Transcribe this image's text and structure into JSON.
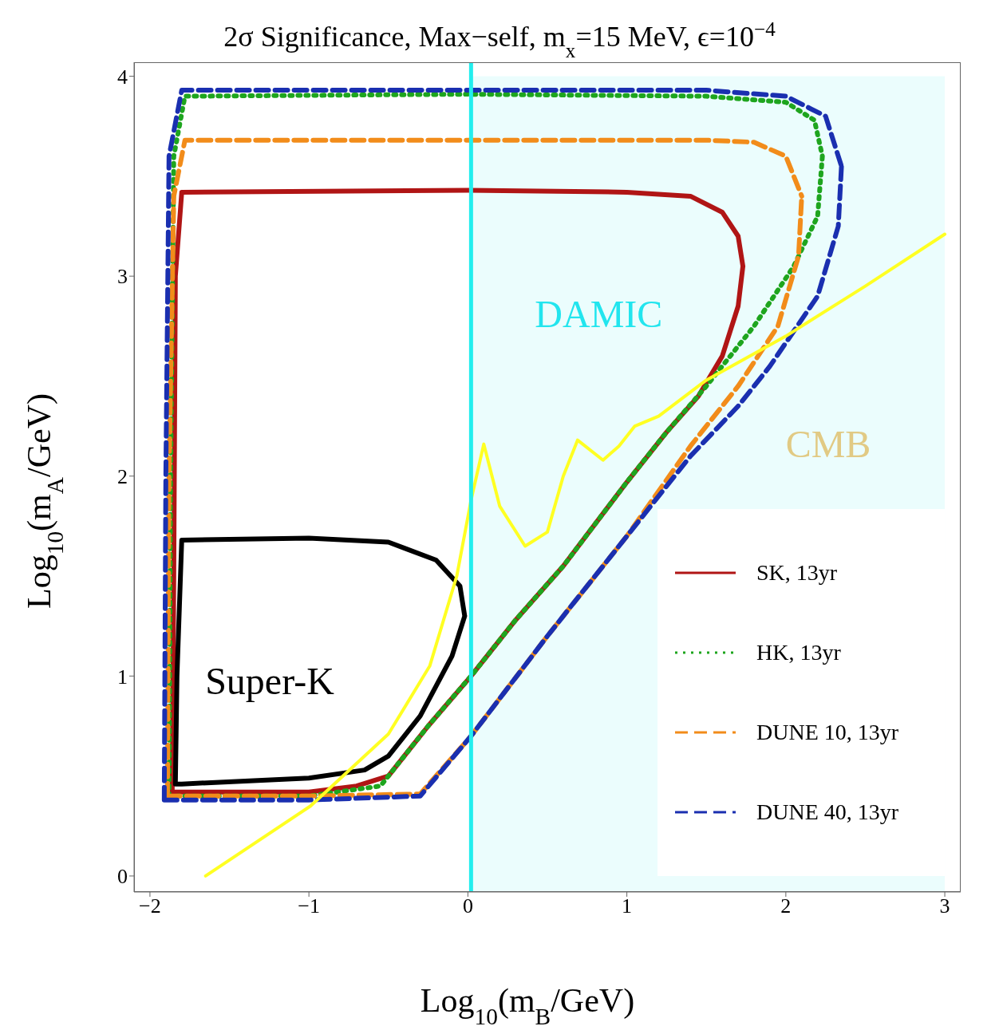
{
  "chart_data": {
    "type": "line",
    "title": "2σ Significance, Max−self, m$_{x}$=15 MeV, ϵ=10$^{−4}$",
    "xlabel": "Log$_{10}$(m$_{B}$/GeV)",
    "ylabel": "Log$_{10}$(m$_{A}$/GeV)",
    "xlim": [
      -2.1,
      3.1
    ],
    "ylim": [
      -0.08,
      4.07
    ],
    "xticks": [
      -2,
      -1,
      0,
      1,
      2,
      3
    ],
    "yticks": [
      0,
      1,
      2,
      3,
      4
    ],
    "legend": "bottom right",
    "marker": "none",
    "series": [
      {
        "name": "SK, 13yr",
        "color": "#b01515",
        "line_style": "solid",
        "x": [
          -1.86,
          -1.85,
          -1.84,
          -1.8,
          0,
          1.0,
          1.4,
          1.6,
          1.7,
          1.73,
          null,
          -1.86,
          -1.0,
          -0.7,
          -0.5,
          -0.25,
          0.02,
          0.3,
          0.6,
          1.0,
          1.25,
          1.45,
          1.6,
          1.7,
          1.73
        ],
        "values": [
          0.42,
          1.5,
          3.0,
          3.42,
          3.43,
          3.42,
          3.4,
          3.32,
          3.2,
          3.05,
          null,
          0.42,
          0.42,
          0.45,
          0.5,
          0.75,
          1.0,
          1.28,
          1.55,
          1.97,
          2.22,
          2.4,
          2.6,
          2.85,
          3.05
        ]
      },
      {
        "name": "HK, 13yr",
        "color": "#1ea51e",
        "line_style": "dotted",
        "x": [
          -1.88,
          -1.87,
          -1.85,
          -1.78,
          0,
          1.5,
          2.0,
          2.18,
          2.23,
          null,
          -1.88,
          -1.0,
          -0.55,
          -0.25,
          0.02,
          0.3,
          0.6,
          1.0,
          1.25,
          1.5,
          1.8,
          2.05,
          2.2,
          2.23
        ],
        "values": [
          0.4,
          2.0,
          3.6,
          3.9,
          3.91,
          3.9,
          3.87,
          3.78,
          3.6,
          null,
          0.4,
          0.4,
          0.45,
          0.75,
          1.0,
          1.28,
          1.55,
          1.97,
          2.22,
          2.45,
          2.75,
          3.05,
          3.3,
          3.6
        ]
      },
      {
        "name": "DUNE 10, 13yr",
        "color": "#f28c1a",
        "line_style": "dashed",
        "x": [
          -1.89,
          -1.88,
          -1.85,
          -1.78,
          0,
          1.5,
          1.8,
          2.0,
          2.1,
          null,
          -1.89,
          -1.0,
          -0.3,
          0.02,
          0.5,
          1.0,
          1.4,
          1.7,
          1.95,
          2.08,
          2.1
        ],
        "values": [
          0.4,
          2.0,
          3.4,
          3.68,
          3.68,
          3.68,
          3.67,
          3.6,
          3.4,
          null,
          0.4,
          0.4,
          0.41,
          0.7,
          1.2,
          1.7,
          2.15,
          2.45,
          2.75,
          3.1,
          3.4
        ]
      },
      {
        "name": "DUNE 40, 13yr",
        "color": "#1a2fb0",
        "line_style": "dashed",
        "x": [
          -1.91,
          -1.9,
          -1.88,
          -1.8,
          0,
          1.5,
          2.0,
          2.25,
          2.35,
          null,
          -1.91,
          -1.0,
          -0.3,
          0.02,
          0.5,
          1.0,
          1.4,
          1.7,
          1.9,
          2.2,
          2.33,
          2.35
        ],
        "values": [
          0.38,
          2.0,
          3.6,
          3.93,
          3.93,
          3.93,
          3.9,
          3.8,
          3.55,
          null,
          0.38,
          0.38,
          0.4,
          0.7,
          1.2,
          1.7,
          2.1,
          2.35,
          2.55,
          2.9,
          3.25,
          3.55
        ]
      },
      {
        "color": "#000000",
        "line_style": "solid",
        "x": [
          -1.84,
          -1.83,
          -1.8,
          -1.0,
          -0.5,
          -0.2,
          -0.05,
          -0.02,
          null,
          -1.84,
          -1.8,
          -1.0,
          -0.65,
          -0.5,
          -0.3,
          -0.1,
          -0.02
        ],
        "values": [
          0.46,
          1.0,
          1.68,
          1.69,
          1.67,
          1.58,
          1.45,
          1.3,
          null,
          0.46,
          0.46,
          0.49,
          0.53,
          0.6,
          0.8,
          1.1,
          1.3
        ]
      },
      {
        "color": "#ffff22",
        "line_style": "solid",
        "x": [
          -1.65,
          -0.99,
          -0.5,
          -0.24,
          -0.07,
          0.02,
          0.1,
          0.2,
          0.36,
          0.5,
          0.6,
          0.69,
          0.85,
          0.95,
          1.05,
          1.2,
          1.5,
          2.0,
          2.5,
          3.0
        ],
        "values": [
          0,
          0.35,
          0.71,
          1.05,
          1.5,
          1.88,
          2.16,
          1.85,
          1.65,
          1.72,
          2.0,
          2.18,
          2.08,
          2.15,
          2.25,
          2.3,
          2.48,
          2.7,
          2.95,
          3.21
        ]
      }
    ],
    "ref_lines": [
      {
        "axis": "x",
        "value": 0.02,
        "color": "#22eeee"
      }
    ],
    "bands": [
      {
        "axis": "x",
        "from": 0.02,
        "to": 3.0,
        "label": "DAMIC",
        "color": "#22e5ee"
      }
    ],
    "annotations": [
      "Super-K",
      "CMB"
    ]
  }
}
